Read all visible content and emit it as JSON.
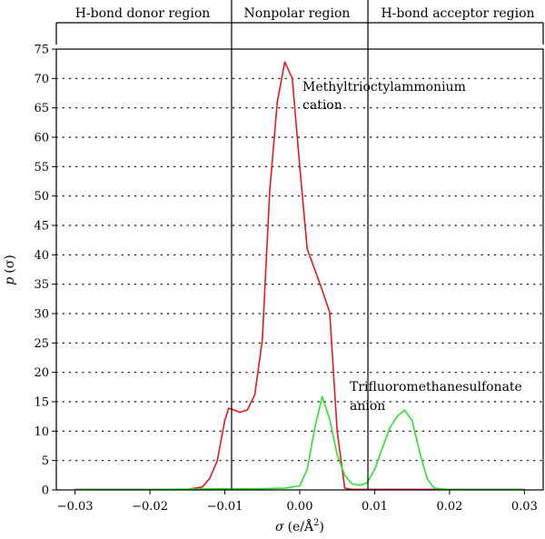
{
  "chart_data": {
    "type": "line",
    "xlabel_var": "σ",
    "xlabel_unit": "(e/Å",
    "xlabel_sup": "2",
    "xlabel_close": ")",
    "ylabel_var": "p",
    "ylabel_arg": "(σ)",
    "xlim": [
      -0.0325,
      0.0325
    ],
    "ylim": [
      0,
      75
    ],
    "x_ticks": [
      -0.03,
      -0.02,
      -0.01,
      0.0,
      0.01,
      0.02,
      0.03
    ],
    "x_tick_labels": [
      "−0.03",
      "−0.02",
      "−0.01",
      "0.00",
      "0.01",
      "0.02",
      "0.03"
    ],
    "y_ticks": [
      0,
      5,
      10,
      15,
      20,
      25,
      30,
      35,
      40,
      45,
      50,
      55,
      60,
      65,
      70,
      75
    ],
    "y_tick_labels": [
      "0",
      "5",
      "10",
      "15",
      "20",
      "25",
      "30",
      "35",
      "40",
      "45",
      "50",
      "55",
      "60",
      "65",
      "70",
      "75"
    ],
    "grid": "horizontal-dotted",
    "region_boundaries": [
      -0.0091,
      0.0091
    ],
    "regions": [
      {
        "label": "H-bond donor region"
      },
      {
        "label": "Nonpolar region"
      },
      {
        "label": "H-bond acceptor region"
      }
    ],
    "series": [
      {
        "color": "#e8191c",
        "x": [
          -0.03,
          -0.025,
          -0.02,
          -0.015,
          -0.013,
          -0.012,
          -0.011,
          -0.0105,
          -0.01,
          -0.0095,
          -0.009,
          -0.008,
          -0.007,
          -0.006,
          -0.005,
          -0.004,
          -0.003,
          -0.002,
          -0.001,
          0.0,
          0.001,
          0.002,
          0.003,
          0.004,
          0.005,
          0.006,
          0.007,
          0.008,
          0.01,
          0.015,
          0.02,
          0.025,
          0.03
        ],
        "y": [
          0.1,
          0.1,
          0.1,
          0.1,
          0.5,
          2,
          5,
          8.5,
          11.8,
          13.9,
          13.7,
          13.2,
          13.6,
          16.2,
          25.5,
          51,
          66,
          72.8,
          70,
          55,
          41,
          37.5,
          34,
          30.2,
          10,
          0.3,
          0.1,
          0.1,
          0.1,
          0.1,
          0.1,
          0.1,
          0.1
        ]
      },
      {
        "color": "#2fe02f",
        "x": [
          -0.03,
          -0.02,
          -0.01,
          -0.005,
          -0.002,
          0.0,
          0.001,
          0.002,
          0.003,
          0.004,
          0.005,
          0.006,
          0.007,
          0.008,
          0.009,
          0.01,
          0.011,
          0.012,
          0.013,
          0.014,
          0.015,
          0.016,
          0.017,
          0.0175,
          0.018,
          0.02,
          0.03
        ],
        "y": [
          0.1,
          0.1,
          0.2,
          0.2,
          0.3,
          0.7,
          3.5,
          10.5,
          15.9,
          12,
          6,
          2.5,
          1,
          0.8,
          1.2,
          3.5,
          7,
          10.5,
          12.5,
          13.6,
          11.8,
          6.5,
          2,
          1,
          0.3,
          0.1,
          0.1
        ]
      }
    ],
    "annotations": [
      {
        "lines": [
          "Methyltrioctylammonium",
          "cation"
        ]
      },
      {
        "lines": [
          "Trifluoromethanesulfonate",
          "anion"
        ]
      }
    ]
  }
}
